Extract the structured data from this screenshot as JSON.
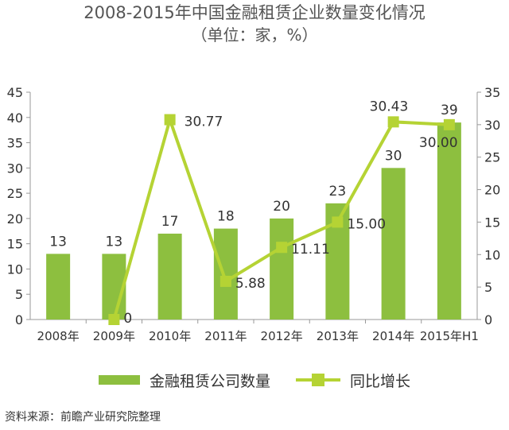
{
  "title": "2008-2015年中国金融租赁企业数量变化情况",
  "subtitle": "（单位：家，%）",
  "source": "资料来源：前瞻产业研究院整理",
  "colors": {
    "bar": "#8dbf3f",
    "line": "#b5d334",
    "axis": "#999999",
    "text": "#333333"
  },
  "chart_data": {
    "type": "bar",
    "categories": [
      "2008年",
      "2009年",
      "2010年",
      "2011年",
      "2012年",
      "2013年",
      "2014年",
      "2015年H1"
    ],
    "series": [
      {
        "name": "金融租赁公司数量",
        "type": "bar",
        "axis": "left",
        "values": [
          13,
          13,
          17,
          18,
          20,
          23,
          30,
          39
        ],
        "labels": [
          "13",
          "13",
          "17",
          "18",
          "20",
          "23",
          "30",
          "39"
        ]
      },
      {
        "name": "同比增长",
        "type": "line",
        "axis": "right",
        "values": [
          null,
          0,
          30.77,
          5.88,
          11.11,
          15.0,
          30.43,
          30.0
        ],
        "labels": [
          "",
          "0",
          "30.77",
          "5.88",
          "11.11",
          "15.00",
          "30.43",
          "30.00"
        ]
      }
    ],
    "y_left": {
      "min": 0,
      "max": 45,
      "step": 5,
      "ticks": [
        "0",
        "5",
        "10",
        "15",
        "20",
        "25",
        "30",
        "35",
        "40",
        "45"
      ]
    },
    "y_right": {
      "min": 0,
      "max": 35,
      "step": 5,
      "ticks": [
        "0",
        "5",
        "10",
        "15",
        "20",
        "25",
        "30",
        "35"
      ]
    },
    "grid": false,
    "legend": "bottom"
  }
}
